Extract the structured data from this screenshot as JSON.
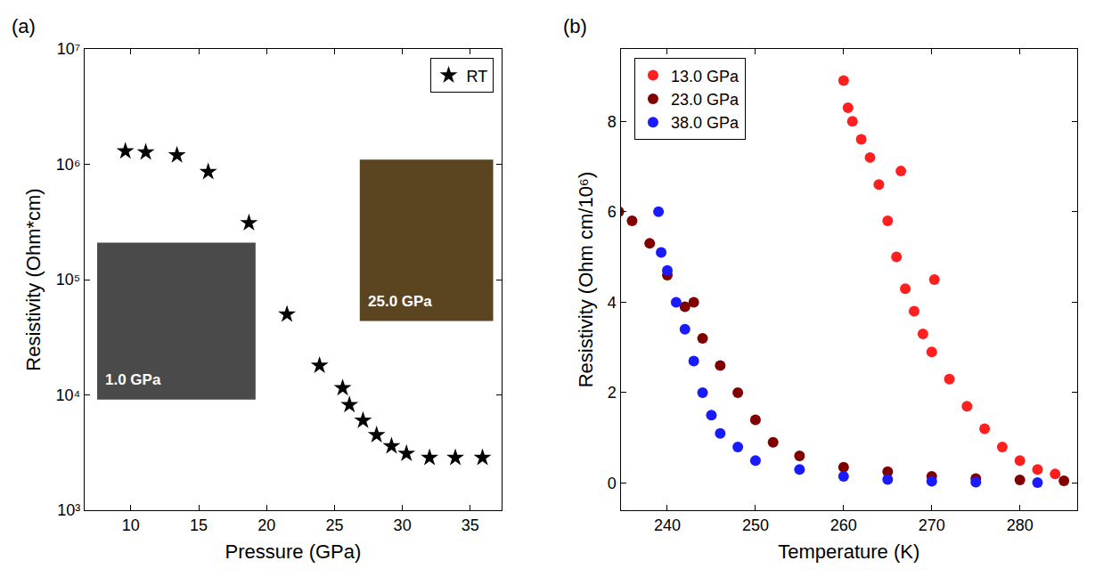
{
  "chart_data": [
    {
      "type": "scatter",
      "panel": "(a)",
      "x_label": "Pressure (GPa)",
      "y_label": "Resistivity (Ohm*cm)",
      "log": "y",
      "legend": "upper right",
      "marker": "star",
      "xlim": [
        6.6,
        37.3
      ],
      "xticks": [
        10,
        15,
        20,
        25,
        30,
        35
      ],
      "ylim": [
        1000,
        10000000
      ],
      "yticks": [
        {
          "value": 1000,
          "label": "10³"
        },
        {
          "value": 10000,
          "label": "10⁴"
        },
        {
          "value": 100000,
          "label": "10⁵"
        },
        {
          "value": 1000000,
          "label": "10⁶"
        },
        {
          "value": 10000000,
          "label": "10⁷"
        }
      ],
      "annotations": [
        "1.0 GPa",
        "25.0 GPa"
      ],
      "series": [
        {
          "name": "RT",
          "color": "#000000",
          "x": [
            9.6,
            11.1,
            13.4,
            15.7,
            18.7,
            21.5,
            23.9,
            25.6,
            26.1,
            27.1,
            28.1,
            29.2,
            30.3,
            32.0,
            33.9,
            35.9
          ],
          "values": [
            1300000,
            1270000,
            1200000,
            860000,
            310000,
            50000,
            18000,
            11500,
            8200,
            6000,
            4500,
            3600,
            3100,
            2850,
            2850,
            2850
          ]
        }
      ]
    },
    {
      "type": "scatter",
      "panel": "(b)",
      "x_label": "Temperature (K)",
      "y_label": "Resistivity (Ohm cm/10⁶)",
      "legend": "upper left",
      "marker": "circle",
      "xlim": [
        234.7,
        286.5
      ],
      "xticks": [
        240,
        250,
        260,
        270,
        280
      ],
      "ylim": [
        -0.6,
        9.6
      ],
      "yticks": [
        0,
        2,
        4,
        6,
        8
      ],
      "series": [
        {
          "name": "13.0 GPa",
          "color": "#ff1f1f",
          "x": [
            260,
            260.5,
            261,
            262,
            263,
            264,
            265,
            266,
            266.5,
            267,
            268,
            269,
            270,
            270.3,
            272,
            274,
            276,
            278,
            280,
            282,
            284
          ],
          "values": [
            8.9,
            8.3,
            8.0,
            7.6,
            7.2,
            6.6,
            5.8,
            5.0,
            6.9,
            4.3,
            3.8,
            3.3,
            2.9,
            4.5,
            2.3,
            1.7,
            1.2,
            0.8,
            0.5,
            0.3,
            0.2
          ]
        },
        {
          "name": "23.0 GPa",
          "color": "#800000",
          "x": [
            234.5,
            236,
            238,
            240,
            242,
            243,
            244,
            246,
            248,
            250,
            252,
            255,
            260,
            265,
            270,
            275,
            280,
            285
          ],
          "values": [
            6.0,
            5.8,
            5.3,
            4.6,
            3.9,
            4.0,
            3.2,
            2.6,
            2.0,
            1.4,
            0.9,
            0.6,
            0.35,
            0.25,
            0.15,
            0.1,
            0.07,
            0.05
          ]
        },
        {
          "name": "38.0 GPa",
          "color": "#1a1aff",
          "x": [
            239,
            239.3,
            240,
            241,
            242,
            243,
            244,
            245,
            246,
            248,
            250,
            255,
            260,
            265,
            270,
            275,
            282
          ],
          "values": [
            6.0,
            5.1,
            4.7,
            4.0,
            3.4,
            2.7,
            2.0,
            1.5,
            1.1,
            0.8,
            0.5,
            0.3,
            0.15,
            0.08,
            0.04,
            0.02,
            0.01
          ]
        }
      ]
    }
  ]
}
